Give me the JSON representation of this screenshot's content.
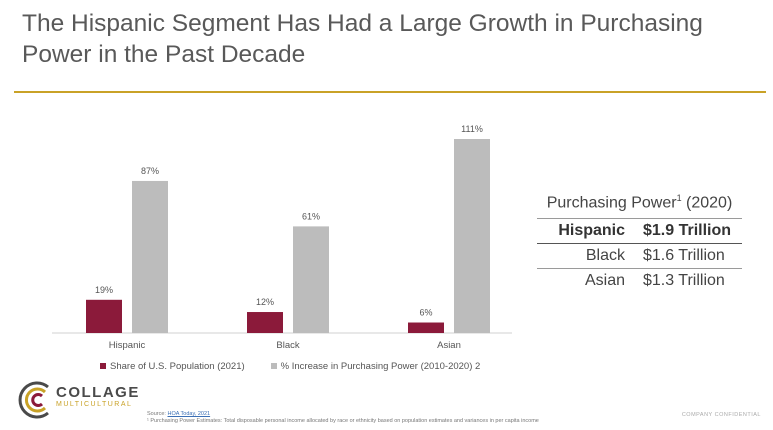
{
  "page": {
    "title": "The Hispanic Segment Has Had a Large Growth in Purchasing Power in the Past Decade",
    "accent_color": "#c9a227"
  },
  "chart_data": {
    "type": "bar",
    "categories": [
      "Hispanic",
      "Black",
      "Asian"
    ],
    "series": [
      {
        "name": "Share of U.S. Population (2021)",
        "values": [
          19,
          12,
          6
        ],
        "labels": [
          "19%",
          "12%",
          "6%"
        ],
        "color": "#8b1a3a"
      },
      {
        "name": "% Increase in Purchasing Power (2010-2020) 2",
        "values": [
          87,
          61,
          111
        ],
        "labels": [
          "87%",
          "61%",
          "111%"
        ],
        "color": "#bcbcbc"
      }
    ],
    "ylim": [
      0,
      111
    ],
    "grid": false,
    "legend_position": "bottom"
  },
  "purchasing_power": {
    "title": "Purchasing Power",
    "sup": "1",
    "year": "(2020)",
    "rows": [
      {
        "category": "Hispanic",
        "value": "$1.9 Trillion"
      },
      {
        "category": "Black",
        "value": "$1.6 Trillion"
      },
      {
        "category": "Asian",
        "value": "$1.3 Trillion"
      }
    ]
  },
  "logo": {
    "name": "COLLAGE",
    "subtitle": "MULTICULTURAL"
  },
  "source": {
    "prefix": "Source:",
    "link": "HOA Today, 2021"
  },
  "footnote": "¹ Purchasing Power Estimates: Total disposable personal income allocated by race or ethnicity based on population estimates and variances in per capita income",
  "confidential": "COMPANY CONFIDENTIAL"
}
